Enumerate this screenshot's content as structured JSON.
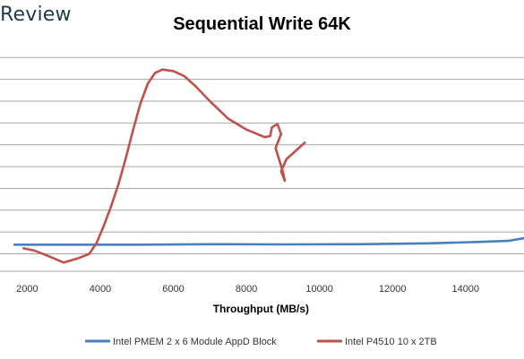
{
  "header": {
    "brand": "Review"
  },
  "chart_data": {
    "type": "line",
    "title": "Sequential Write 64K",
    "xlabel": "Throughput (MB/s)",
    "ylabel": "",
    "xlim": [
      1500,
      15600
    ],
    "x_ticks": [
      2000,
      4000,
      6000,
      8000,
      10000,
      12000,
      14000
    ],
    "y_ticks": [
      0,
      1,
      2,
      3,
      4,
      5,
      6,
      7,
      8,
      9
    ],
    "ylim": [
      -0.8,
      9.3
    ],
    "grid": true,
    "legend_position": "bottom",
    "series": [
      {
        "name": "Intel PMEM 2 x 6 Module AppD Block",
        "color": "#4a7ebf",
        "points": [
          [
            1650,
            0.42
          ],
          [
            3000,
            0.42
          ],
          [
            5000,
            0.42
          ],
          [
            7000,
            0.44
          ],
          [
            9000,
            0.43
          ],
          [
            11000,
            0.44
          ],
          [
            13000,
            0.48
          ],
          [
            14500,
            0.55
          ],
          [
            15200,
            0.6
          ],
          [
            15600,
            0.72
          ]
        ]
      },
      {
        "name": "Intel P4510 10 x 2TB",
        "color": "#c0504d",
        "points": [
          [
            1900,
            0.25
          ],
          [
            2200,
            0.15
          ],
          [
            2500,
            -0.05
          ],
          [
            3000,
            -0.4
          ],
          [
            3400,
            -0.2
          ],
          [
            3700,
            0.0
          ],
          [
            3900,
            0.5
          ],
          [
            4100,
            1.3
          ],
          [
            4300,
            2.2
          ],
          [
            4500,
            3.2
          ],
          [
            4700,
            4.4
          ],
          [
            4900,
            5.7
          ],
          [
            5100,
            6.9
          ],
          [
            5300,
            7.8
          ],
          [
            5500,
            8.3
          ],
          [
            5700,
            8.45
          ],
          [
            6000,
            8.38
          ],
          [
            6300,
            8.15
          ],
          [
            6600,
            7.7
          ],
          [
            7000,
            7.0
          ],
          [
            7500,
            6.2
          ],
          [
            8000,
            5.7
          ],
          [
            8500,
            5.35
          ],
          [
            8650,
            5.4
          ],
          [
            8700,
            5.8
          ],
          [
            8850,
            5.95
          ],
          [
            8950,
            5.5
          ],
          [
            8800,
            4.85
          ],
          [
            8900,
            4.3
          ],
          [
            9000,
            3.75
          ],
          [
            9050,
            3.35
          ],
          [
            8950,
            3.8
          ],
          [
            9100,
            4.35
          ],
          [
            9400,
            4.8
          ],
          [
            9600,
            5.1
          ]
        ]
      }
    ]
  }
}
